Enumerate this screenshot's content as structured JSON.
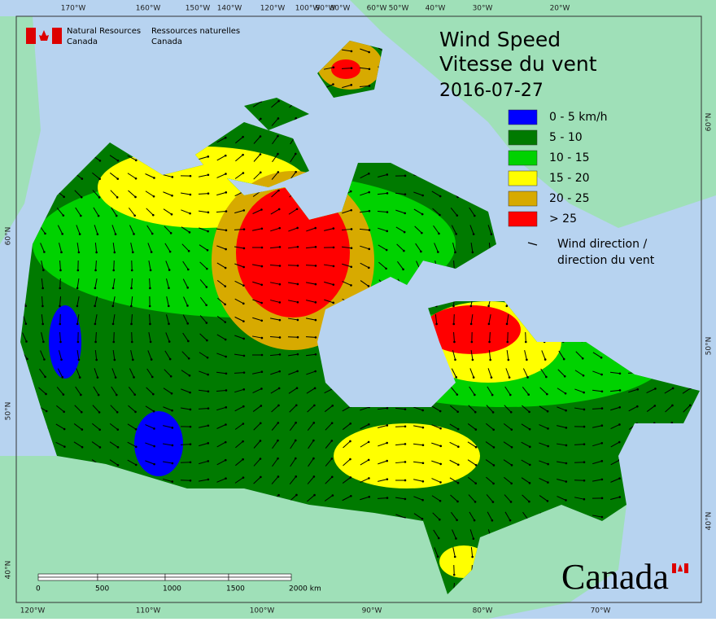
{
  "header": {
    "en": [
      "Natural Resources",
      "Canada"
    ],
    "fr": [
      "Ressources naturelles",
      "Canada"
    ]
  },
  "title": {
    "lines": [
      "Wind Speed",
      "Vitesse du vent"
    ],
    "date": "2016-07-27"
  },
  "legend": {
    "classes": [
      {
        "label": "0 - 5 km/h",
        "color": "#0000ff"
      },
      {
        "label": "5 - 10",
        "color": "#007a00"
      },
      {
        "label": "10 - 15",
        "color": "#00d200"
      },
      {
        "label": "15 - 20",
        "color": "#ffff00"
      },
      {
        "label": "20 - 25",
        "color": "#d7aa00"
      },
      {
        "label": "> 25",
        "color": "#ff0000"
      }
    ],
    "arrow": [
      "Wind direction /",
      "direction du vent"
    ]
  },
  "graticule": {
    "top": [
      "170°W",
      "160°W",
      "150°W",
      "140°W",
      "120°W",
      "100°W",
      "90°W",
      "80°W",
      "60°W",
      "50°W",
      "40°W",
      "30°W",
      "20°W"
    ],
    "bottom": [
      "120°W",
      "110°W",
      "100°W",
      "90°W",
      "80°W",
      "70°W"
    ],
    "left": [
      "60°N",
      "50°N",
      "40°N"
    ],
    "right": [
      "60°N",
      "50°N",
      "40°N"
    ]
  },
  "scale_bar": {
    "labels": [
      "0",
      "500",
      "1000",
      "1500",
      "2000 km"
    ]
  },
  "wordmark": "Canada"
}
